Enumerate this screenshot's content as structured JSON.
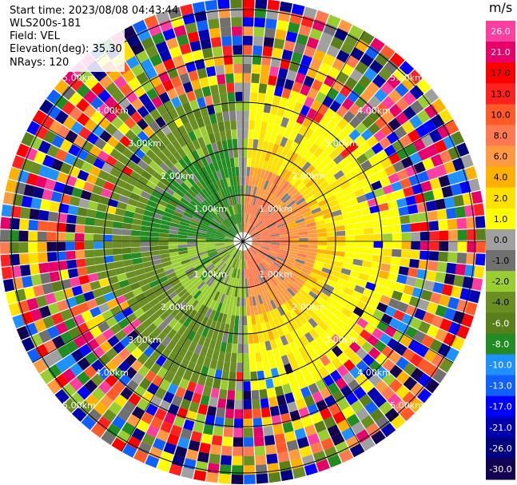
{
  "header": {
    "start_time": "Start time: 2023/08/08 04:43:44",
    "instrument": "WLS200s-181",
    "field": "Field: VEL",
    "elevation": "Elevation(deg): 35.30",
    "nrays": "NRays: 120"
  },
  "colorbar": {
    "unit": "m/s",
    "ticks": [
      "26.0",
      "21.0",
      "17.0",
      "13.0",
      "10.0",
      "8.0",
      "6.0",
      "4.0",
      "2.0",
      "1.0",
      "0.0",
      "-1.0",
      "-2.0",
      "-4.0",
      "-6.0",
      "-8.0",
      "-10.0",
      "-13.0",
      "-17.0",
      "-21.0",
      "-26.0",
      "-30.0"
    ],
    "colors": [
      "#ff3fa0",
      "#e8006a",
      "#ff0000",
      "#ff2020",
      "#ff5a28",
      "#ff7a50",
      "#ff9a40",
      "#ffb000",
      "#ffe000",
      "#ffff00",
      "#a0a0a0",
      "#707070",
      "#9acd32",
      "#6b8e23",
      "#5a7f1a",
      "#228b22",
      "#1e90ff",
      "#1060ff",
      "#0000ff",
      "#0000b0",
      "#000080",
      "#140050"
    ]
  },
  "chart_data": {
    "type": "heatmap",
    "projection": "polar PPI",
    "field": "VEL",
    "elevation_deg": 35.3,
    "nrays": 120,
    "range_ring_labels": [
      "1.00km",
      "2.00km",
      "3.00km",
      "4.00km",
      "5.00km"
    ],
    "colorbar_range": [
      -30.0,
      26.0
    ],
    "unit": "m/s"
  }
}
